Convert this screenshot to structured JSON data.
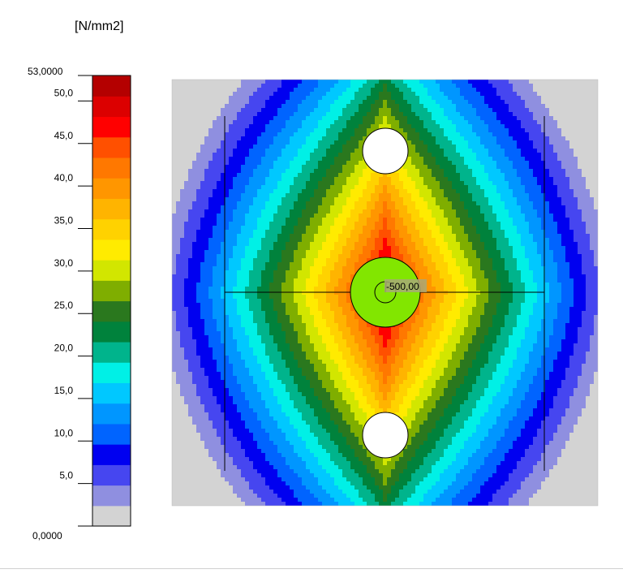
{
  "chart_data": {
    "type": "heatmap",
    "title": "",
    "unit": "[N/mm2]",
    "range": [
      0,
      53
    ],
    "legend": {
      "placement": "left",
      "max_label": "53,0000",
      "min_label": "0,0000",
      "tick_values": [
        50,
        45,
        40,
        35,
        30,
        25,
        20,
        15,
        10,
        5
      ],
      "tick_labels": [
        "50,0",
        "45,0",
        "40,0",
        "35,0",
        "30,0",
        "25,0",
        "20,0",
        "15,0",
        "10,0",
        "5,0"
      ]
    },
    "color_scale": [
      "#d3d3d3",
      "#8f8fe0",
      "#4646f0",
      "#0000f0",
      "#0064ff",
      "#0096ff",
      "#00c8ff",
      "#00f0e6",
      "#00b48c",
      "#00823c",
      "#2a781e",
      "#7fae00",
      "#d2e600",
      "#ffeb00",
      "#ffd200",
      "#ffb400",
      "#ff9600",
      "#ff7800",
      "#ff5000",
      "#ff0000",
      "#dc0000",
      "#b40000"
    ],
    "annotation": "-500,00"
  }
}
